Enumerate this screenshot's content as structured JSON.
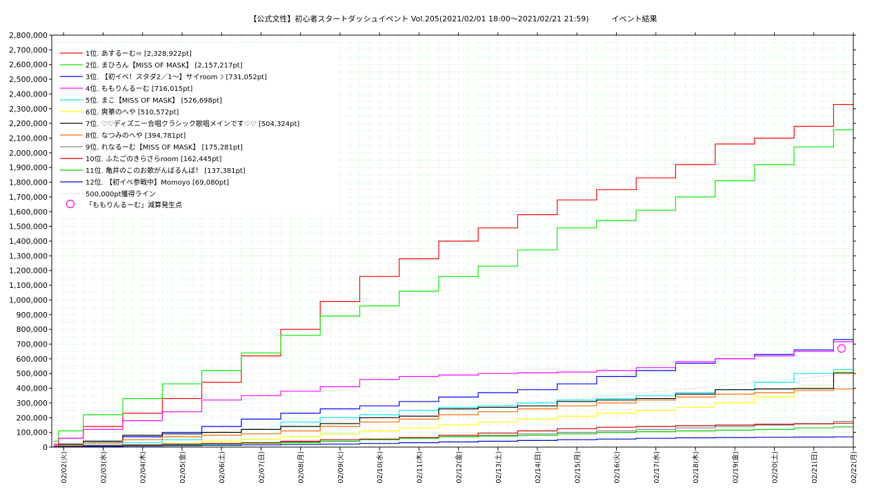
{
  "chart_data": {
    "type": "line",
    "title": "【公式文性】初心者スタートダッシュイベント Vol.205(2021/02/01 18:00〜2021/02/21 21:59)　　　イベント結果",
    "xlabel": "",
    "ylabel": "",
    "ylim": [
      0,
      2800000
    ],
    "y_ticks": [
      0,
      100000,
      200000,
      300000,
      400000,
      500000,
      600000,
      700000,
      800000,
      900000,
      1000000,
      1100000,
      1200000,
      1300000,
      1400000,
      1500000,
      1600000,
      1700000,
      1800000,
      1900000,
      2000000,
      2100000,
      2200000,
      2300000,
      2400000,
      2500000,
      2600000,
      2700000,
      2800000
    ],
    "y_tick_labels": [
      "0",
      "100,000",
      "200,000",
      "300,000",
      "400,000",
      "500,000",
      "600,000",
      "700,000",
      "800,000",
      "900,000",
      "1,000,000",
      "1,100,000",
      "1,200,000",
      "1,300,000",
      "1,400,000",
      "1,500,000",
      "1,600,000",
      "1,700,000",
      "1,800,000",
      "1,900,000",
      "2,000,000",
      "2,100,000",
      "2,200,000",
      "2,300,000",
      "2,400,000",
      "2,500,000",
      "2,600,000",
      "2,700,000",
      "2,800,000"
    ],
    "x_tick_labels": [
      "02/02(火)",
      "02/03(水)",
      "02/04(木)",
      "02/05(金)",
      "02/06(土)",
      "02/07(日)",
      "02/08(月)",
      "02/09(火)",
      "02/10(水)",
      "02/11(木)",
      "02/12(金)",
      "02/13(土)",
      "02/14(日)",
      "02/15(月)",
      "02/16(火)",
      "02/17(水)",
      "02/18(木)",
      "02/19(金)",
      "02/20(土)",
      "02/21(日)",
      "02/22(月)"
    ],
    "grid": true,
    "legend_position": "top-left",
    "x_days": [
      -0.25,
      0,
      1,
      2,
      3,
      4,
      5,
      6,
      7,
      8,
      9,
      10,
      11,
      12,
      13,
      14,
      15,
      16,
      17,
      18,
      19,
      20
    ],
    "series": [
      {
        "name": "1位. あするーむ♾ [2,328,922pt]",
        "color": "#ff0000",
        "values": [
          20000,
          60000,
          140000,
          230000,
          330000,
          440000,
          620000,
          800000,
          990000,
          1160000,
          1280000,
          1400000,
          1490000,
          1580000,
          1680000,
          1750000,
          1830000,
          1920000,
          2060000,
          2100000,
          2180000,
          2328922
        ]
      },
      {
        "name": "2位. まひろん【MISS OF MASK】 [2,157,217pt]",
        "color": "#00ee00",
        "values": [
          40000,
          110000,
          220000,
          330000,
          430000,
          520000,
          640000,
          760000,
          890000,
          960000,
          1060000,
          1160000,
          1230000,
          1340000,
          1490000,
          1540000,
          1610000,
          1700000,
          1810000,
          1920000,
          2040000,
          2157217
        ]
      },
      {
        "name": "3位. 【初イベ！スタダ2／1〜】サイroom☽ [731,052pt]",
        "color": "#0000ff",
        "values": [
          5000,
          15000,
          40000,
          70000,
          100000,
          140000,
          190000,
          230000,
          260000,
          280000,
          310000,
          340000,
          370000,
          390000,
          430000,
          480000,
          520000,
          570000,
          600000,
          630000,
          660000,
          731052
        ]
      },
      {
        "name": "4位. ももりんるーむ [716,015pt]",
        "color": "#ff00ff",
        "values": [
          10000,
          60000,
          120000,
          180000,
          240000,
          320000,
          350000,
          380000,
          410000,
          460000,
          480000,
          490000,
          500000,
          505000,
          510000,
          520000,
          540000,
          580000,
          600000,
          620000,
          650000,
          716015
        ]
      },
      {
        "name": "5位. まこ【MISS OF MASK】 [526,698pt]",
        "color": "#00eeee",
        "values": [
          2000,
          10000,
          20000,
          30000,
          50000,
          80000,
          120000,
          170000,
          200000,
          220000,
          250000,
          270000,
          280000,
          300000,
          320000,
          330000,
          350000,
          370000,
          390000,
          440000,
          500000,
          526698
        ]
      },
      {
        "name": "6位. 爽華のへや [510,572pt]",
        "color": "#ffff00",
        "values": [
          1000,
          5000,
          10000,
          15000,
          25000,
          40000,
          55000,
          70000,
          90000,
          110000,
          130000,
          150000,
          170000,
          190000,
          210000,
          230000,
          250000,
          270000,
          300000,
          340000,
          400000,
          510572
        ]
      },
      {
        "name": "7位. ♡♡ディズニー合唱クラシック歌唱メインです♡♡ [504,324pt]",
        "color": "#000000",
        "values": [
          2000,
          20000,
          40000,
          80000,
          90000,
          100000,
          120000,
          140000,
          160000,
          200000,
          210000,
          260000,
          270000,
          280000,
          310000,
          320000,
          330000,
          360000,
          390000,
          395000,
          398000,
          504324
        ]
      },
      {
        "name": "8位. なつみのへや [394,781pt]",
        "color": "#ff6600",
        "values": [
          3000,
          15000,
          30000,
          50000,
          70000,
          80000,
          90000,
          110000,
          140000,
          170000,
          190000,
          220000,
          240000,
          260000,
          280000,
          300000,
          320000,
          340000,
          360000,
          370000,
          385000,
          394781
        ]
      },
      {
        "name": "9位. れなるーむ【MISS OF MASK】 [175,281pt]",
        "color": "#808080",
        "values": [
          1000,
          5000,
          10000,
          15000,
          20000,
          25000,
          30000,
          35000,
          40000,
          50000,
          60000,
          70000,
          80000,
          90000,
          100000,
          110000,
          120000,
          130000,
          140000,
          150000,
          160000,
          175281
        ]
      },
      {
        "name": "10位. ふたごのきらさらroom [162,445pt]",
        "color": "#cc0000",
        "values": [
          1000,
          5000,
          10000,
          15000,
          20000,
          25000,
          30000,
          40000,
          50000,
          55000,
          65000,
          80000,
          95000,
          110000,
          125000,
          135000,
          140000,
          145000,
          150000,
          155000,
          158000,
          162445
        ]
      },
      {
        "name": "11位. 亀井のこのお歌がんばるんば！ [137,381pt]",
        "color": "#00cc00",
        "values": [
          1000,
          3000,
          6000,
          10000,
          15000,
          20000,
          25000,
          30000,
          40000,
          50000,
          60000,
          70000,
          75000,
          80000,
          90000,
          100000,
          105000,
          110000,
          115000,
          120000,
          130000,
          137381
        ]
      },
      {
        "name": "12位. 【初イベ参戦中】Momoyo [69,080pt]",
        "color": "#0000cc",
        "values": [
          500,
          2000,
          5000,
          8000,
          10000,
          12000,
          15000,
          18000,
          20000,
          25000,
          30000,
          35000,
          40000,
          45000,
          50000,
          55000,
          60000,
          63000,
          65000,
          67000,
          68000,
          69080
        ]
      }
    ],
    "reference_line": {
      "name": "500,000pt獲得ライン",
      "color": "#999999",
      "style": "dotted"
    },
    "event_marker": {
      "name": "「ももりんるーむ」減算発生点",
      "color": "#ff00ff",
      "shape": "circle",
      "x_day": 19.7,
      "value": 670000
    }
  }
}
